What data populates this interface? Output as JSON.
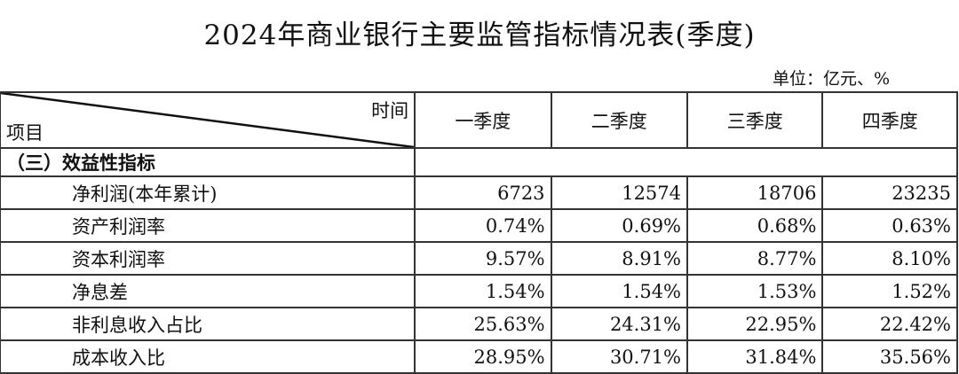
{
  "title": "2024年商业银行主要监管指标情况表(季度)",
  "unit": "单位：亿元、%",
  "header": {
    "time_label": "时间",
    "item_label": "项目",
    "quarters": [
      "一季度",
      "二季度",
      "三季度",
      "四季度"
    ]
  },
  "section": "（三）效益性指标",
  "rows": [
    {
      "label": "净利润(本年累计)",
      "values": [
        "6723",
        "12574",
        "18706",
        "23235"
      ]
    },
    {
      "label": "资产利润率",
      "values": [
        "0.74%",
        "0.69%",
        "0.68%",
        "0.63%"
      ]
    },
    {
      "label": "资本利润率",
      "values": [
        "9.57%",
        "8.91%",
        "8.77%",
        "8.10%"
      ]
    },
    {
      "label": "净息差",
      "values": [
        "1.54%",
        "1.54%",
        "1.53%",
        "1.52%"
      ]
    },
    {
      "label": "非利息收入占比",
      "values": [
        "25.63%",
        "24.31%",
        "22.95%",
        "22.42%"
      ]
    },
    {
      "label": "成本收入比",
      "values": [
        "28.95%",
        "30.71%",
        "31.84%",
        "35.56%"
      ]
    }
  ]
}
